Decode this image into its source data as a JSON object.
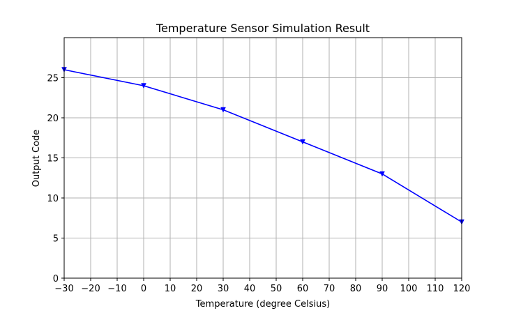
{
  "chart_data": {
    "type": "line",
    "title": "Temperature Sensor Simulation Result",
    "xlabel": "Temperature (degree Celsius)",
    "ylabel": "Output Code",
    "xlim": [
      -30,
      120
    ],
    "ylim": [
      0,
      30
    ],
    "xticks": [
      -30,
      -20,
      -10,
      0,
      10,
      20,
      30,
      40,
      50,
      60,
      70,
      80,
      90,
      100,
      110,
      120
    ],
    "yticks": [
      0,
      5,
      10,
      15,
      20,
      25
    ],
    "grid": true,
    "series": [
      {
        "color": "#0000ff",
        "marker": "triangle-down",
        "x": [
          -30,
          0,
          30,
          60,
          90,
          120
        ],
        "y": [
          26,
          24,
          21,
          17,
          13,
          7
        ]
      }
    ]
  }
}
